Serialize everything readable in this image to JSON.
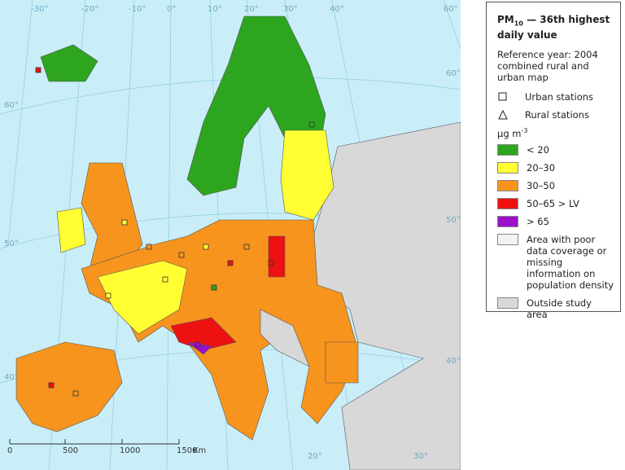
{
  "graticule": {
    "top": [
      "-30°",
      "-20°",
      "-10°",
      "0°",
      "10°",
      "20°",
      "30°",
      "40°",
      "60°"
    ],
    "left": [
      "60°",
      "50°",
      "40°"
    ],
    "right": [
      "60°",
      "50°",
      "40°"
    ],
    "bottom": [
      "20°",
      "30°"
    ]
  },
  "scale_bar": {
    "labels": [
      "0",
      "500",
      "1000",
      "1500"
    ],
    "unit": "Km"
  },
  "legend": {
    "title_main": "PM",
    "title_sub": "10",
    "title_rest": " — 36th highest daily value",
    "reference": "Reference year: 2004 combined rural and urban map",
    "symbols": [
      "Urban stations",
      "Rural stations"
    ],
    "unit_main": "μg m",
    "unit_sup": "-3",
    "classes": [
      {
        "label": "< 20",
        "color": "#2da51e"
      },
      {
        "label": "20–30",
        "color": "#ffff33"
      },
      {
        "label": "30–50",
        "color": "#f7941d"
      },
      {
        "label": "50–65 > LV",
        "color": "#ee1111"
      },
      {
        "label": "> 65",
        "color": "#9b10c8"
      }
    ],
    "areas": [
      {
        "label": "Area with poor data coverage or missing information on population density",
        "color": "#f2f2f2"
      },
      {
        "label": "Outside study area",
        "color": "#d8d8d8"
      }
    ]
  }
}
